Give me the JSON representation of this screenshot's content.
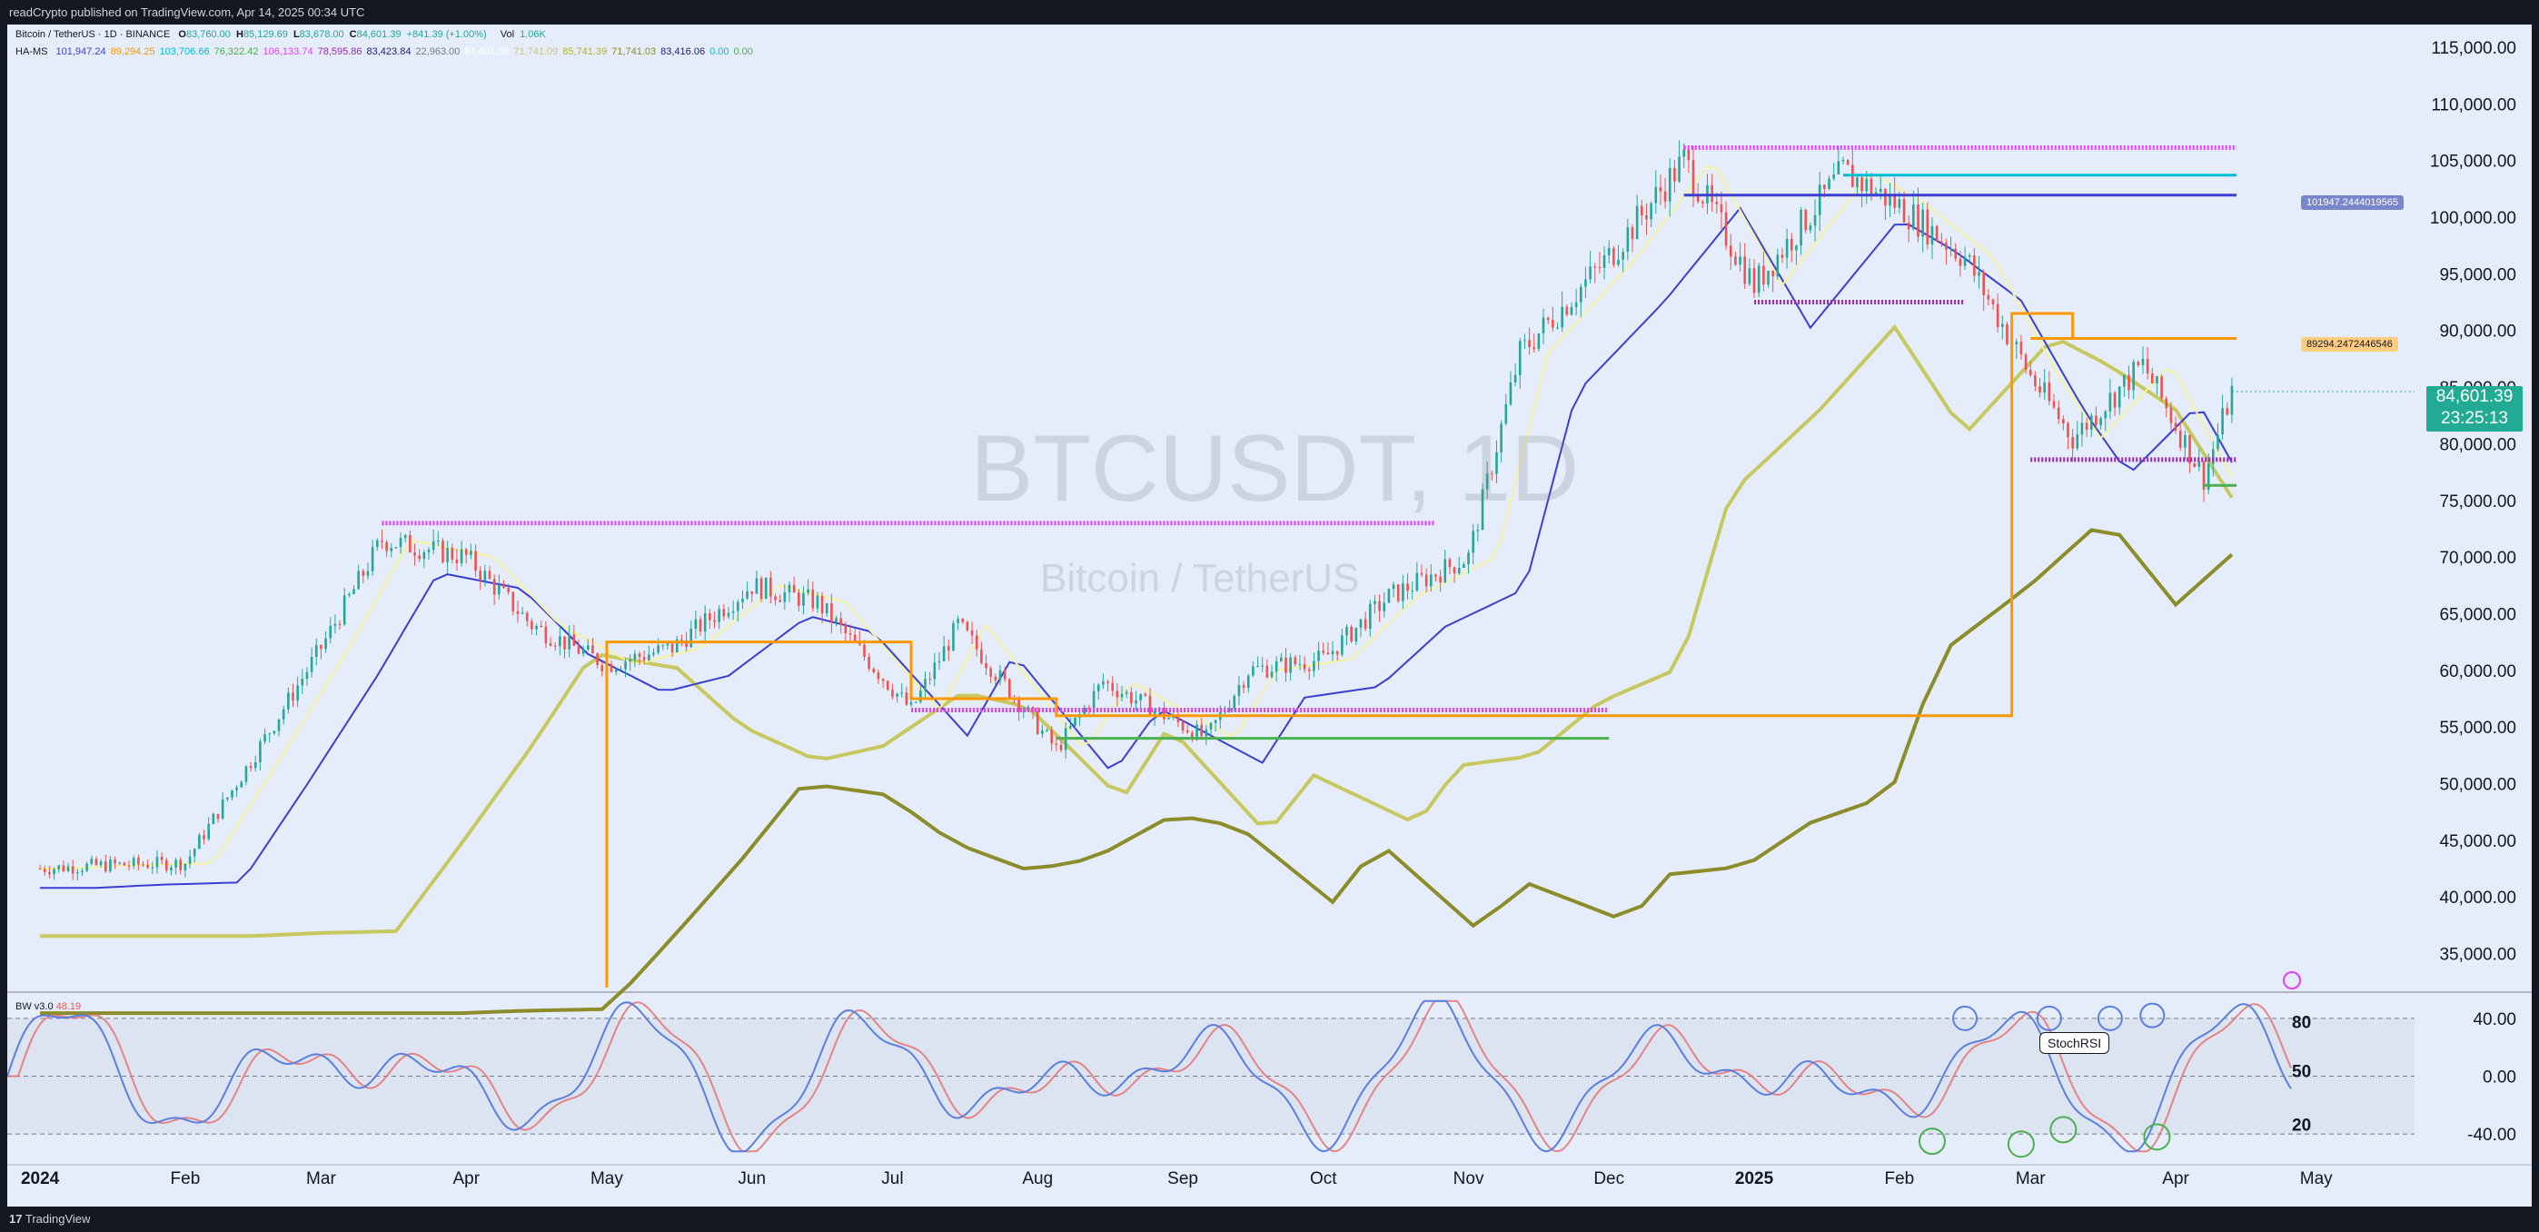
{
  "header": {
    "publish_text": "readCrypto published on TradingView.com, Apr 14, 2025 00:34 UTC"
  },
  "footer": {
    "brand": "TradingView"
  },
  "legend": {
    "symbol": "Bitcoin / TetherUS · 1D · BINANCE",
    "ohlc": {
      "o_label": "O",
      "o": "83,760.00",
      "h_label": "H",
      "h": "85,129.69",
      "l_label": "L",
      "l": "83,678.00",
      "c_label": "C",
      "c": "84,601.39",
      "chg": "+841.39 (+1.00%)"
    },
    "vol_label": "Vol",
    "vol": "1.06K",
    "indicator_name": "HA-MS",
    "indicator_values": [
      {
        "text": "101,947.24",
        "color": "#3b3fd1"
      },
      {
        "text": "89,294.25",
        "color": "#ff9800"
      },
      {
        "text": "103,706.66",
        "color": "#00bcd4"
      },
      {
        "text": "76,322.42",
        "color": "#4caf50"
      },
      {
        "text": "106,133.74",
        "color": "#e040fb"
      },
      {
        "text": "78,595.86",
        "color": "#9c27b0"
      },
      {
        "text": "83,423.84",
        "color": "#1e1e7a"
      },
      {
        "text": "22,963.00",
        "color": "#787b86"
      },
      {
        "text": "84,601.39",
        "color": "#ffffff"
      },
      {
        "text": "71,741.09",
        "color": "#c8c880"
      },
      {
        "text": "85,741.39",
        "color": "#b5b030"
      },
      {
        "text": "71,741.03",
        "color": "#8c8c2a"
      },
      {
        "text": "83,416.06",
        "color": "#1a237e"
      },
      {
        "text": "0.00",
        "color": "#00bcd4"
      },
      {
        "text": "0.00",
        "color": "#4caf50"
      }
    ]
  },
  "watermark": {
    "symbol": "BTCUSDT, 1D",
    "description": "Bitcoin / TetherUS"
  },
  "price_tag": {
    "price": "84,601.39",
    "countdown": "23:25:13"
  },
  "flag_labels": [
    {
      "text": "101947.2444019565",
      "color": "#7986cb"
    },
    {
      "text": "89294.2472446546",
      "color": "#ffcc80"
    }
  ],
  "oscillator": {
    "name": "BW v3.0",
    "value": "48.19",
    "level_labels": [
      "80",
      "50",
      "20"
    ],
    "tooltip": "StochRSI"
  },
  "colors": {
    "background": "#e4edf9",
    "up": "#26a69a",
    "down": "#ef5350",
    "stoch_blue": "#5b7fe0",
    "stoch_red": "#e57373",
    "magenta": "#e040fb",
    "cyan": "#00bcd4",
    "blue": "#3b3fd1",
    "orange": "#ff9800",
    "green": "#4caf50",
    "olive": "#8c8c2a",
    "khaki": "#c8c860"
  },
  "chart_data": {
    "type": "line",
    "title": "BTCUSDT, 1D",
    "xlabel": "",
    "ylabel": "",
    "x_ticks": [
      "2024",
      "Feb",
      "Mar",
      "Apr",
      "May",
      "Jun",
      "Jul",
      "Aug",
      "Sep",
      "Oct",
      "Nov",
      "Dec",
      "2025",
      "Feb",
      "Mar",
      "Apr",
      "May"
    ],
    "y_ticks": [
      "115,000.00",
      "110,000.00",
      "105,000.00",
      "100,000.00",
      "95,000.00",
      "90,000.00",
      "85,000.00",
      "80,000.00",
      "75,000.00",
      "70,000.00",
      "65,000.00",
      "60,000.00",
      "55,000.00",
      "50,000.00",
      "45,000.00",
      "40,000.00",
      "35,000.00"
    ],
    "ylim": [
      32000,
      117000
    ],
    "osc_y_ticks": [
      "40.00",
      "0.00",
      "-40.00"
    ],
    "osc_ylim": [
      -55,
      55
    ],
    "series": [
      {
        "name": "BTCUSDT",
        "x": [
          "2024-01-01",
          "2024-01-15",
          "2024-02-01",
          "2024-02-15",
          "2024-03-01",
          "2024-03-14",
          "2024-04-01",
          "2024-04-15",
          "2024-05-01",
          "2024-05-15",
          "2024-06-01",
          "2024-06-15",
          "2024-07-05",
          "2024-07-15",
          "2024-08-05",
          "2024-08-15",
          "2024-09-06",
          "2024-09-15",
          "2024-10-01",
          "2024-10-15",
          "2024-11-01",
          "2024-11-12",
          "2024-12-01",
          "2024-12-17",
          "2025-01-01",
          "2025-01-20",
          "2025-02-01",
          "2025-02-15",
          "2025-03-01",
          "2025-03-10",
          "2025-03-25",
          "2025-04-07",
          "2025-04-13"
        ],
        "values": [
          42500,
          42800,
          43000,
          52000,
          62000,
          71500,
          70000,
          64000,
          60500,
          62000,
          67500,
          66000,
          56500,
          64000,
          53000,
          59000,
          54000,
          60000,
          61000,
          66500,
          70000,
          88000,
          96500,
          105000,
          94000,
          104000,
          101000,
          96500,
          86000,
          80500,
          87000,
          77000,
          84600
        ]
      },
      {
        "name": "",
        "x": [
          "2025-04-13",
          "2025-05-01"
        ],
        "values": [
          84601.39,
          84601.39
        ]
      }
    ],
    "levels": [
      {
        "value": 106133.74,
        "from": "2024-12-17",
        "to": "2025-04-14",
        "color": "#e040fb"
      },
      {
        "value": 103706.66,
        "from": "2025-01-20",
        "to": "2025-04-14",
        "color": "#00bcd4"
      },
      {
        "value": 101947.24,
        "from": "2024-12-17",
        "to": "2025-04-14",
        "color": "#3b3fd1"
      },
      {
        "value": 89294.25,
        "from": "2025-03-01",
        "to": "2025-04-14",
        "color": "#ff9800"
      },
      {
        "value": 78595.86,
        "from": "2025-03-01",
        "to": "2025-04-14",
        "color": "#9c27b0"
      },
      {
        "value": 76322.42,
        "from": "2025-04-07",
        "to": "2025-04-14",
        "color": "#4caf50"
      },
      {
        "value": 92500,
        "from": "2025-01-01",
        "to": "2025-02-15",
        "color": "#9c27b0"
      },
      {
        "value": 73000,
        "from": "2024-03-14",
        "to": "2024-10-25",
        "color": "#e040fb"
      },
      {
        "value": 56500,
        "from": "2024-07-05",
        "to": "2024-12-01",
        "color": "#e040fb"
      },
      {
        "value": 54000,
        "from": "2024-08-05",
        "to": "2024-12-01",
        "color": "#4caf50"
      }
    ]
  }
}
